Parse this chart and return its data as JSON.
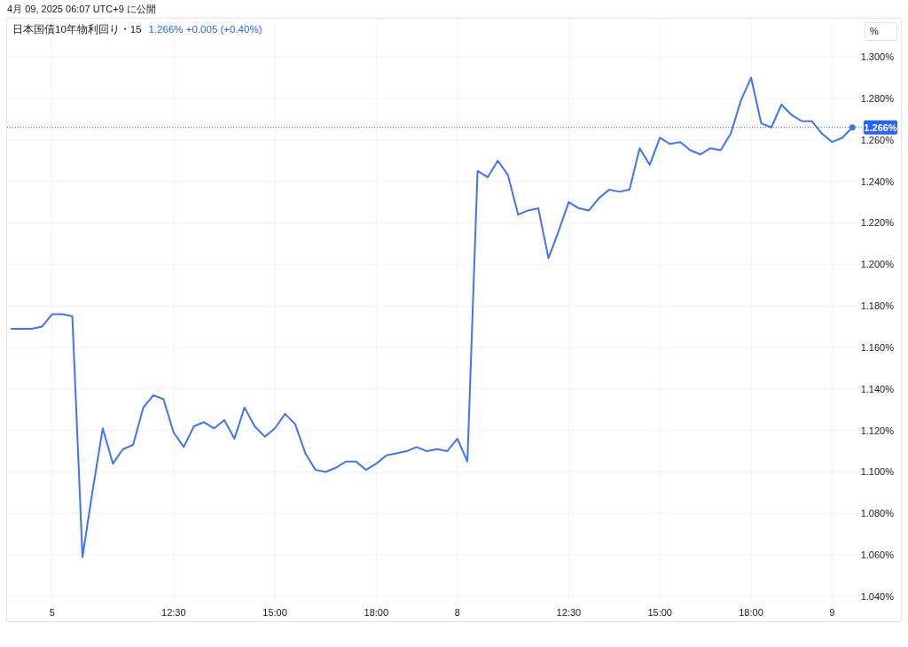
{
  "chart_data": {
    "type": "line",
    "title": "日本国債10年物利回り・15",
    "subtitle": "1.266% +0.005 (+0.40%)",
    "annotations": [
      "4月 09, 2025 06:07 UTC+9 に公開",
      "%"
    ],
    "categories": [
      null,
      null,
      null,
      null,
      "5",
      null,
      null,
      null,
      null,
      null,
      null,
      null,
      null,
      null,
      null,
      null,
      "12:30",
      null,
      null,
      null,
      null,
      null,
      null,
      null,
      null,
      null,
      "15:00",
      null,
      null,
      null,
      null,
      null,
      null,
      null,
      null,
      null,
      "18:00",
      null,
      null,
      null,
      null,
      null,
      null,
      null,
      "8",
      null,
      null,
      null,
      null,
      null,
      null,
      null,
      null,
      null,
      null,
      "12:30",
      null,
      null,
      null,
      null,
      null,
      null,
      null,
      null,
      "15:00",
      null,
      null,
      null,
      null,
      null,
      null,
      null,
      null,
      "18:00",
      null,
      null,
      null,
      null,
      null,
      null,
      null,
      "9",
      null,
      null
    ],
    "series": [
      {
        "color": "#4272f5",
        "values": [
          1.169,
          1.169,
          1.169,
          1.17,
          1.176,
          1.176,
          1.175,
          1.059,
          1.091,
          1.121,
          1.104,
          1.111,
          1.113,
          1.131,
          1.137,
          1.135,
          1.119,
          1.112,
          1.122,
          1.124,
          1.121,
          1.125,
          1.116,
          1.131,
          1.122,
          1.117,
          1.121,
          1.128,
          1.123,
          1.109,
          1.101,
          1.1,
          1.102,
          1.105,
          1.105,
          1.101,
          1.104,
          1.108,
          1.109,
          1.11,
          1.112,
          1.11,
          1.111,
          1.11,
          1.116,
          1.105,
          1.245,
          1.242,
          1.25,
          1.243,
          1.224,
          1.226,
          1.227,
          1.203,
          1.216,
          1.23,
          1.227,
          1.226,
          1.232,
          1.236,
          1.235,
          1.236,
          1.256,
          1.248,
          1.261,
          1.258,
          1.259,
          1.255,
          1.253,
          1.256,
          1.255,
          1.263,
          1.279,
          1.29,
          1.268,
          1.266,
          1.277,
          1.272,
          1.269,
          1.269,
          1.263,
          1.259,
          1.261,
          1.266
        ]
      },
      {
        "type": "scatter",
        "color": "#4272f5",
        "values": [
          null,
          null,
          null,
          null,
          null,
          null,
          null,
          null,
          null,
          null,
          null,
          null,
          null,
          null,
          null,
          null,
          null,
          null,
          null,
          null,
          null,
          null,
          null,
          null,
          null,
          null,
          null,
          null,
          null,
          null,
          null,
          null,
          null,
          null,
          null,
          null,
          null,
          null,
          null,
          null,
          null,
          null,
          null,
          null,
          null,
          null,
          null,
          null,
          null,
          null,
          null,
          null,
          null,
          null,
          null,
          null,
          null,
          null,
          null,
          null,
          null,
          null,
          null,
          null,
          null,
          null,
          null,
          null,
          null,
          null,
          null,
          null,
          null,
          null,
          null,
          null,
          null,
          null,
          null,
          null,
          null,
          null,
          null,
          1.266
        ]
      }
    ],
    "ylim": [
      1.037,
      1.318
    ],
    "yticks": [
      {
        "value": 1.04,
        "label": "1.040%"
      },
      {
        "value": 1.06,
        "label": "1.060%"
      },
      {
        "value": 1.08,
        "label": "1.080%"
      },
      {
        "value": 1.1,
        "label": "1.100%"
      },
      {
        "value": 1.12,
        "label": "1.120%"
      },
      {
        "value": 1.14,
        "label": "1.140%"
      },
      {
        "value": 1.16,
        "label": "1.160%"
      },
      {
        "value": 1.18,
        "label": "1.180%"
      },
      {
        "value": 1.2,
        "label": "1.200%"
      },
      {
        "value": 1.22,
        "label": "1.220%"
      },
      {
        "value": 1.24,
        "label": "1.240%"
      },
      {
        "value": 1.26,
        "label": "1.260%"
      },
      {
        "value": 1.28,
        "label": "1.280%"
      },
      {
        "value": 1.3,
        "label": "1.300%"
      }
    ],
    "ref_lines": [
      {
        "axis": "y",
        "value": 1.266,
        "label": "1.266%",
        "color": "#2962ff",
        "line_style": "dotted"
      }
    ],
    "grid": true
  }
}
